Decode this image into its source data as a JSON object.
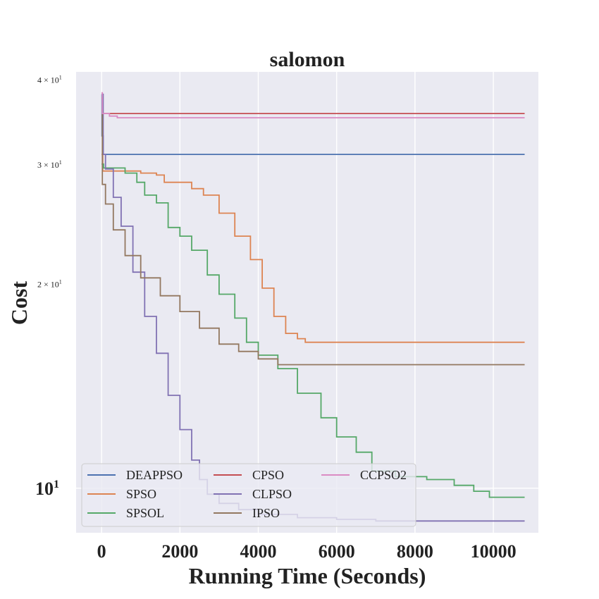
{
  "chart_data": {
    "type": "line",
    "title": "salomon",
    "xlabel": "Running Time (Seconds)",
    "ylabel": "Cost",
    "yscale": "log",
    "xlim": [
      -650,
      11150
    ],
    "ylim": [
      8.6,
      41.0
    ],
    "grid": true,
    "legend_position": "lower-left",
    "x_ticks": [
      0,
      2000,
      4000,
      6000,
      8000,
      10000
    ],
    "x_tick_labels": [
      "0",
      "2000",
      "4000",
      "6000",
      "8000",
      "10000"
    ],
    "y_ticks": [
      {
        "value": 10,
        "base": "10",
        "exp": "1",
        "major": true
      },
      {
        "value": 20,
        "base": "2 × 10",
        "exp": "1",
        "major": false
      },
      {
        "value": 30,
        "base": "3 × 10",
        "exp": "1",
        "major": false
      },
      {
        "value": 40,
        "base": "4 × 10",
        "exp": "1",
        "major": false
      }
    ],
    "series": [
      {
        "name": "DEAPPSO",
        "color": "#4c72b0",
        "points": [
          [
            0,
            38
          ],
          [
            10,
            33
          ],
          [
            40,
            31
          ],
          [
            10800,
            31
          ]
        ]
      },
      {
        "name": "SPSO",
        "color": "#dd8452",
        "points": [
          [
            0,
            31
          ],
          [
            30,
            29.3
          ],
          [
            500,
            29.3
          ],
          [
            1000,
            29.1
          ],
          [
            1400,
            28.9
          ],
          [
            1600,
            28.2
          ],
          [
            2000,
            28.2
          ],
          [
            2300,
            27.6
          ],
          [
            2600,
            27.0
          ],
          [
            3000,
            25.4
          ],
          [
            3400,
            23.5
          ],
          [
            3800,
            21.7
          ],
          [
            4100,
            19.7
          ],
          [
            4400,
            17.9
          ],
          [
            4700,
            16.9
          ],
          [
            5000,
            16.6
          ],
          [
            5200,
            16.4
          ],
          [
            10800,
            16.4
          ]
        ]
      },
      {
        "name": "SPSOL",
        "color": "#55a868",
        "points": [
          [
            0,
            30
          ],
          [
            50,
            29.6
          ],
          [
            600,
            29.1
          ],
          [
            900,
            28.2
          ],
          [
            1100,
            27.0
          ],
          [
            1400,
            26.3
          ],
          [
            1700,
            24.2
          ],
          [
            2000,
            23.5
          ],
          [
            2300,
            22.4
          ],
          [
            2700,
            20.6
          ],
          [
            3000,
            19.3
          ],
          [
            3400,
            17.8
          ],
          [
            3700,
            16.4
          ],
          [
            4000,
            15.7
          ],
          [
            4500,
            15.0
          ],
          [
            5000,
            13.8
          ],
          [
            5600,
            12.7
          ],
          [
            6000,
            11.9
          ],
          [
            6500,
            11.3
          ],
          [
            6900,
            10.6
          ],
          [
            7500,
            10.4
          ],
          [
            8300,
            10.3
          ],
          [
            9000,
            10.1
          ],
          [
            9500,
            9.9
          ],
          [
            9900,
            9.7
          ],
          [
            10800,
            9.7
          ]
        ]
      },
      {
        "name": "CPSO",
        "color": "#c44e52",
        "points": [
          [
            0,
            37.5
          ],
          [
            30,
            35.6
          ],
          [
            10800,
            35.6
          ]
        ]
      },
      {
        "name": "CLPSO",
        "color": "#8172b3",
        "points": [
          [
            0,
            38
          ],
          [
            40,
            31
          ],
          [
            100,
            29.5
          ],
          [
            300,
            26.8
          ],
          [
            500,
            24.3
          ],
          [
            800,
            20.8
          ],
          [
            1100,
            17.9
          ],
          [
            1400,
            15.8
          ],
          [
            1700,
            13.7
          ],
          [
            2000,
            12.2
          ],
          [
            2300,
            11.0
          ],
          [
            2500,
            10.3
          ],
          [
            2700,
            9.8
          ],
          [
            3000,
            9.5
          ],
          [
            3500,
            9.3
          ],
          [
            4000,
            9.15
          ],
          [
            5000,
            9.05
          ],
          [
            6000,
            9.0
          ],
          [
            7000,
            8.95
          ],
          [
            10800,
            8.95
          ]
        ]
      },
      {
        "name": "IPSO",
        "color": "#937860",
        "points": [
          [
            0,
            36
          ],
          [
            20,
            28
          ],
          [
            100,
            26.2
          ],
          [
            300,
            24.0
          ],
          [
            600,
            22.0
          ],
          [
            1000,
            20.4
          ],
          [
            1500,
            19.2
          ],
          [
            2000,
            18.2
          ],
          [
            2500,
            17.2
          ],
          [
            3000,
            16.3
          ],
          [
            3500,
            15.9
          ],
          [
            4000,
            15.5
          ],
          [
            4500,
            15.2
          ],
          [
            5000,
            15.2
          ],
          [
            10800,
            15.2
          ]
        ]
      },
      {
        "name": "CCPSO2",
        "color": "#da8bc3",
        "points": [
          [
            0,
            38.2
          ],
          [
            20,
            35.6
          ],
          [
            200,
            35.3
          ],
          [
            400,
            35.1
          ],
          [
            10800,
            35.1
          ]
        ]
      }
    ]
  }
}
